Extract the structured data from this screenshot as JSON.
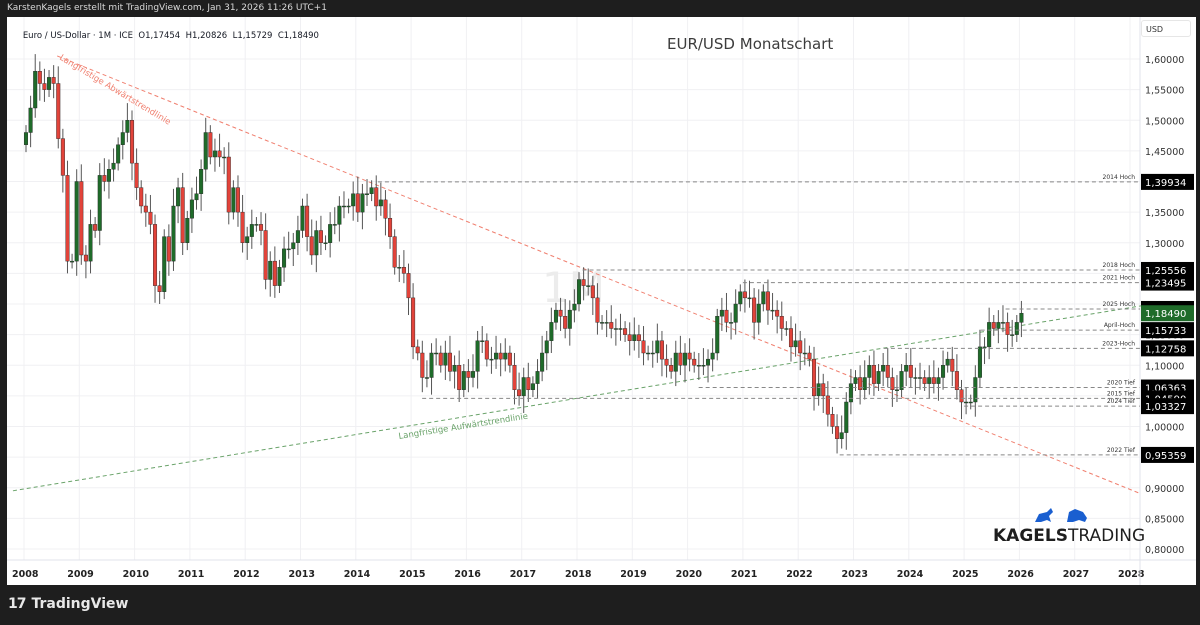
{
  "header": {
    "attribution": "KarstenKagels erstellt mit TradingView.com, Jan 31, 2026 11:26 UTC+1"
  },
  "legend": {
    "symbol": "Euro / US-Dollar · 1M · ICE",
    "open": "O1,17454",
    "high": "H1,20826",
    "low": "L1,15729",
    "close": "C1,18490"
  },
  "footer": {
    "logo_text": "TradingView"
  },
  "brand": {
    "name_bold": "KAGELS",
    "name_regular": "TRADING"
  },
  "colors": {
    "up": "#1f6b2a",
    "down": "#e2433a",
    "downtrend": "#f08070",
    "uptrend": "#6aa36a",
    "label_bg": "#000000",
    "current_bg": "#1f6b2a"
  },
  "chart_data": {
    "type": "candlestick",
    "title": "EUR/USD Monatschart",
    "currency": "USD",
    "watermark": "1M",
    "x_ticks": [
      "2008",
      "2009",
      "2010",
      "2011",
      "2012",
      "2013",
      "2014",
      "2015",
      "2016",
      "2017",
      "2018",
      "2019",
      "2020",
      "2021",
      "2022",
      "2023",
      "2024",
      "2025",
      "2026",
      "2027",
      "2028"
    ],
    "y_ticks": [
      "1,60000",
      "1,55000",
      "1,50000",
      "1,45000",
      "1,40000",
      "1,35000",
      "1,30000",
      "1,25000",
      "1,20000",
      "1,15000",
      "1,10000",
      "1,05000",
      "1,00000",
      "0,95000",
      "0,90000",
      "0,85000",
      "0,80000"
    ],
    "ylim": [
      0.78,
      1.655
    ],
    "levels": [
      {
        "label": "2014 Hoch",
        "value": 1.39934,
        "text": "1,39934",
        "x_start": 2014.4
      },
      {
        "label": "2018 Hoch",
        "value": 1.25556,
        "text": "1,25556",
        "x_start": 2018.1
      },
      {
        "label": "2021 Hoch",
        "value": 1.23495,
        "text": "1,23495",
        "x_start": 2021.0
      },
      {
        "label": "2025 Hoch",
        "value": 1.19188,
        "text": "1,19188",
        "x_start": 2025.75
      },
      {
        "label": "April-Hoch",
        "value": 1.15733,
        "text": "1,15733",
        "x_start": 2025.3
      },
      {
        "label": "2023-Hoch",
        "value": 1.12758,
        "text": "1,12758",
        "x_start": 2023.55
      },
      {
        "label": "2020 Tief",
        "value": 1.06363,
        "text": "1,06363",
        "x_start": 2020.2
      },
      {
        "label": "2015 Tief",
        "value": 1.0459,
        "text": "1,04590",
        "x_start": 2015.2
      },
      {
        "label": "2024 Tief",
        "value": 1.03327,
        "text": "1,03327",
        "x_start": 2025.0
      },
      {
        "label": "2022 Tief",
        "value": 0.95359,
        "text": "0,95359",
        "x_start": 2022.75
      }
    ],
    "current": {
      "value": 1.1849,
      "text": "1,18490"
    },
    "trendlines": [
      {
        "name": "Langfristige Abwärtstrendlinie",
        "from": [
          2008.6,
          1.605
        ],
        "to": [
          2028.2,
          0.89
        ]
      },
      {
        "name": "Langfristige Aufwärtstrendlinie",
        "from": [
          2007.8,
          0.895
        ],
        "to": [
          2028.2,
          1.197
        ]
      }
    ],
    "candles_note": "approximate monthly closes; start Jan 2008",
    "closes": [
      1.48,
      1.52,
      1.58,
      1.56,
      1.55,
      1.57,
      1.56,
      1.47,
      1.41,
      1.27,
      1.27,
      1.4,
      1.28,
      1.27,
      1.33,
      1.32,
      1.41,
      1.4,
      1.42,
      1.43,
      1.46,
      1.48,
      1.5,
      1.43,
      1.39,
      1.36,
      1.35,
      1.33,
      1.23,
      1.22,
      1.31,
      1.27,
      1.36,
      1.39,
      1.3,
      1.34,
      1.37,
      1.38,
      1.42,
      1.48,
      1.44,
      1.45,
      1.44,
      1.44,
      1.35,
      1.39,
      1.35,
      1.3,
      1.31,
      1.33,
      1.33,
      1.32,
      1.24,
      1.27,
      1.23,
      1.26,
      1.29,
      1.29,
      1.3,
      1.32,
      1.36,
      1.31,
      1.28,
      1.32,
      1.3,
      1.3,
      1.33,
      1.33,
      1.36,
      1.36,
      1.36,
      1.38,
      1.35,
      1.38,
      1.38,
      1.39,
      1.36,
      1.37,
      1.34,
      1.31,
      1.26,
      1.26,
      1.25,
      1.21,
      1.13,
      1.12,
      1.08,
      1.08,
      1.12,
      1.12,
      1.1,
      1.12,
      1.09,
      1.1,
      1.06,
      1.09,
      1.08,
      1.09,
      1.14,
      1.14,
      1.11,
      1.11,
      1.12,
      1.11,
      1.12,
      1.1,
      1.06,
      1.05,
      1.08,
      1.06,
      1.07,
      1.09,
      1.12,
      1.14,
      1.17,
      1.19,
      1.18,
      1.16,
      1.19,
      1.2,
      1.24,
      1.23,
      1.23,
      1.21,
      1.17,
      1.17,
      1.17,
      1.16,
      1.16,
      1.16,
      1.15,
      1.14,
      1.15,
      1.14,
      1.12,
      1.12,
      1.12,
      1.14,
      1.11,
      1.1,
      1.09,
      1.12,
      1.1,
      1.12,
      1.11,
      1.1,
      1.1,
      1.1,
      1.11,
      1.12,
      1.18,
      1.19,
      1.17,
      1.17,
      1.2,
      1.22,
      1.21,
      1.21,
      1.17,
      1.2,
      1.22,
      1.19,
      1.19,
      1.18,
      1.16,
      1.16,
      1.13,
      1.14,
      1.12,
      1.12,
      1.11,
      1.05,
      1.07,
      1.05,
      1.02,
      1.0,
      0.98,
      0.99,
      1.04,
      1.07,
      1.08,
      1.06,
      1.08,
      1.1,
      1.07,
      1.09,
      1.1,
      1.08,
      1.06,
      1.06,
      1.09,
      1.1,
      1.08,
      1.08,
      1.08,
      1.07,
      1.08,
      1.07,
      1.08,
      1.1,
      1.11,
      1.09,
      1.06,
      1.04,
      1.04,
      1.04,
      1.08,
      1.13,
      1.13,
      1.17,
      1.16,
      1.17,
      1.17,
      1.15,
      1.15,
      1.17,
      1.185
    ]
  }
}
